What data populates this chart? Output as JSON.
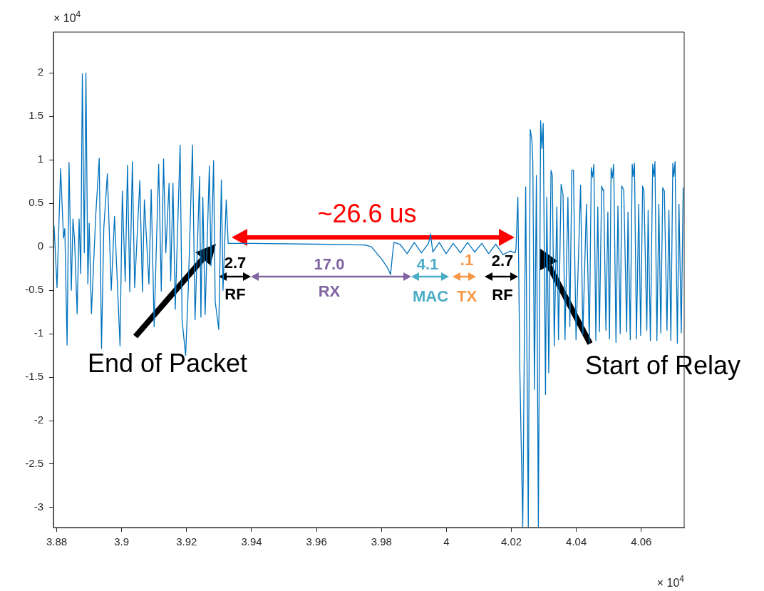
{
  "chart_data": {
    "type": "line",
    "x": [
      3.8792,
      3.8801,
      3.8812,
      3.8821,
      3.8825,
      3.8832,
      3.8838,
      3.8845,
      3.885,
      3.8855,
      3.8863,
      3.8869,
      3.8874,
      3.8879,
      3.8885,
      3.889,
      3.8896,
      3.89,
      3.8907,
      3.892,
      3.8931,
      3.8938,
      3.8945,
      3.8956,
      3.8968,
      3.8978,
      3.8995,
      3.9002,
      3.9011,
      3.9018,
      3.9025,
      3.9033,
      3.904,
      3.9056,
      3.9064,
      3.907,
      3.9084,
      3.9091,
      3.91,
      3.9114,
      3.9122,
      3.9129,
      3.9136,
      3.9146,
      3.9151,
      3.9158,
      3.9165,
      3.918,
      3.9186,
      3.9197,
      3.9205,
      3.9218,
      3.9226,
      3.924,
      3.9244,
      3.925,
      3.9257,
      3.927,
      3.9275,
      3.9283,
      3.9288,
      3.9299,
      3.9307,
      3.9312,
      3.9322,
      3.9328,
      3.9332,
      3.94,
      3.96,
      3.975,
      3.9769,
      3.9802,
      3.982,
      3.9828,
      3.9835,
      3.9839,
      3.9857,
      3.9879,
      3.9901,
      3.9923,
      3.9945,
      3.9951,
      3.9958,
      3.9978,
      3.9999,
      4.0021,
      4.0043,
      4.0065,
      4.0087,
      4.0109,
      4.013,
      4.0152,
      4.0174,
      4.0196,
      4.0211,
      4.0214,
      4.022,
      4.0226,
      4.0235,
      4.0244,
      4.0252,
      4.0258,
      4.0263,
      4.0266,
      4.0271,
      4.0277,
      4.0283,
      4.029,
      4.0294,
      4.0298,
      4.0305,
      4.0309,
      4.0315,
      4.0322,
      4.0326,
      4.0332,
      4.034,
      4.0345,
      4.0353,
      4.0359,
      4.0365,
      4.0374,
      4.038,
      4.0386,
      4.0391,
      4.0399,
      4.0413,
      4.042,
      4.0431,
      4.044,
      4.0446,
      4.045,
      4.0454,
      4.046,
      4.0466,
      4.0471,
      4.0478,
      4.0482,
      4.0484,
      4.0491,
      4.0497,
      4.0502,
      4.0507,
      4.0511,
      4.0515,
      4.0522,
      4.0528,
      4.0535,
      4.054,
      4.0546,
      4.0555,
      4.0559,
      4.0566,
      4.0572,
      4.0575,
      4.0579,
      4.0585,
      4.0592,
      4.0598,
      4.0604,
      4.0608,
      4.0617,
      4.0621,
      4.0628,
      4.0635,
      4.0639,
      4.0642,
      4.0648,
      4.0654,
      4.066,
      4.0666,
      4.0671,
      4.0679,
      4.0685,
      4.0691,
      4.0697,
      4.07,
      4.0704,
      4.0711,
      4.0716,
      4.0723,
      4.0729
    ],
    "series": [
      {
        "color": "#0072bd",
        "values": [
          0.24,
          -0.47,
          0.9,
          0.1,
          0.21,
          -1.13,
          0.97,
          -0.5,
          0.32,
          0.08,
          -0.77,
          0.32,
          -0.31,
          1.99,
          -0.07,
          2.0,
          -0.43,
          0.27,
          -0.77,
          0.35,
          1.02,
          -1.17,
          0.21,
          0.84,
          -0.5,
          0.35,
          -1.14,
          0.64,
          -0.4,
          0.94,
          -0.52,
          0.98,
          -0.47,
          0.76,
          -0.52,
          0.54,
          -0.43,
          0.66,
          -0.92,
          0.95,
          -0.51,
          1.01,
          -0.07,
          0.73,
          -0.39,
          0.73,
          -0.72,
          1.17,
          -0.84,
          -1.25,
          -0.5,
          1.17,
          -0.84,
          0.81,
          -0.81,
          0.57,
          -0.78,
          0.93,
          -0.22,
          0.99,
          -0.63,
          -0.95,
          0.77,
          -0.5,
          0.54,
          0.04,
          0.04,
          0.04,
          0.03,
          0.02,
          0.0,
          -0.15,
          -0.25,
          -0.32,
          -0.05,
          0.05,
          0.03,
          -0.08,
          0.05,
          -0.07,
          0.04,
          0.15,
          -0.06,
          0.05,
          -0.08,
          0.04,
          -0.07,
          0.05,
          -0.06,
          0.04,
          -0.08,
          0.03,
          -0.09,
          -0.05,
          -0.07,
          -0.03,
          0.57,
          -1.42,
          -3.22,
          0.69,
          -3.22,
          1.35,
          1.23,
          0.98,
          -1.64,
          0.82,
          -3.22,
          1.45,
          1.13,
          1.42,
          -1.7,
          0.57,
          -1.45,
          0.88,
          0.82,
          -1.14,
          0.46,
          -1.07,
          0.72,
          0.6,
          -1.07,
          0.57,
          -0.92,
          0.88,
          0.88,
          -1.07,
          0.71,
          -1.01,
          0.49,
          -1.1,
          0.91,
          0.8,
          0.95,
          -1.08,
          0.46,
          -0.98,
          0.7,
          0.65,
          0.66,
          -0.96,
          0.4,
          -1.06,
          0.91,
          0.79,
          0.95,
          -1.1,
          0.47,
          -1.0,
          0.7,
          0.65,
          -0.98,
          0.4,
          -1.07,
          0.95,
          0.81,
          0.96,
          -1.06,
          0.49,
          -1.02,
          0.7,
          0.65,
          -0.96,
          0.42,
          -1.08,
          0.95,
          0.81,
          0.98,
          -1.08,
          0.49,
          -0.99,
          0.68,
          0.64,
          -0.96,
          0.42,
          -1.08,
          0.96,
          0.81,
          0.98,
          -1.11,
          0.49,
          -0.99,
          0.68
        ]
      }
    ],
    "xlim": [
      3.879,
      4.0732
    ],
    "xticks": [
      3.88,
      3.9,
      3.92,
      3.94,
      3.96,
      3.98,
      4,
      4.02,
      4.04,
      4.06
    ],
    "ylim": [
      -3.23,
      2.47
    ],
    "yticks": [
      -3,
      -2.5,
      -2,
      -1.5,
      -1,
      -0.5,
      0,
      0.5,
      1,
      1.5,
      2
    ],
    "grid": false,
    "legend": false,
    "marker": "none",
    "line_style": "solid",
    "annotations": [
      "× 10$^{4}$",
      "× 10$^{4}$",
      "~26.6 us",
      "2.7",
      "RF",
      "17.0",
      "RX",
      "4.1",
      "MAC",
      ".1",
      "TX",
      "2.7",
      "RF",
      "End of Packet",
      "Start of Relay"
    ]
  }
}
